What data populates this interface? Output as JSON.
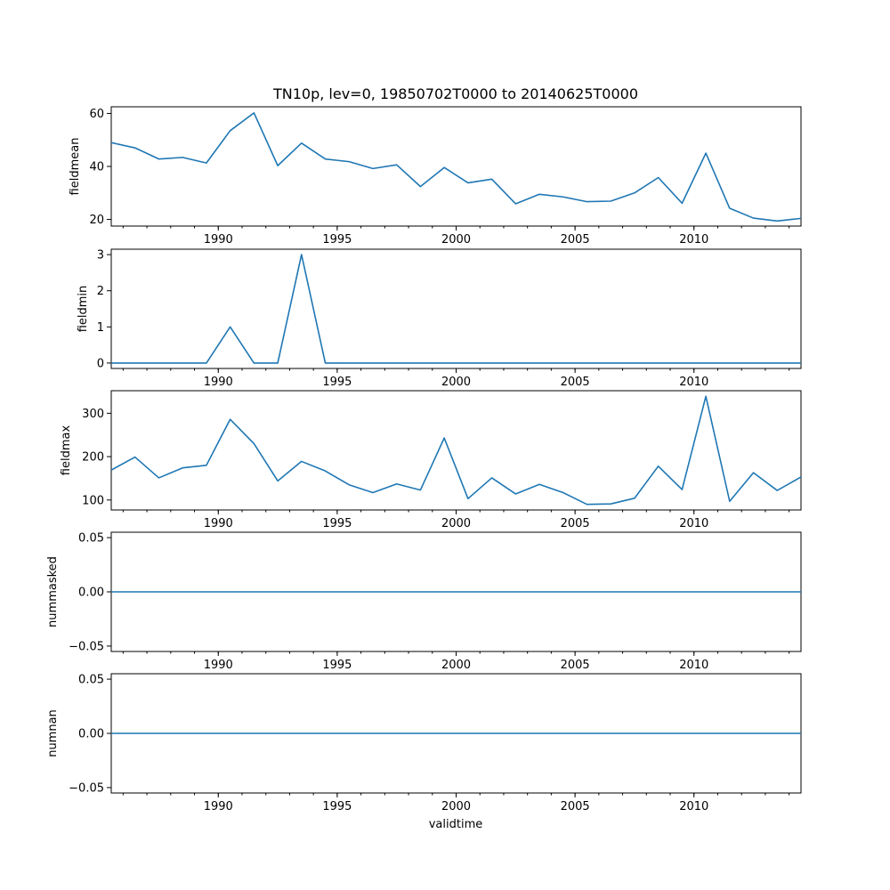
{
  "title": "TN10p, lev=0, 19850702T0000 to 20140625T0000",
  "xlabel": "validtime",
  "colors": {
    "series": "#1f77b4"
  },
  "chart_data": {
    "type": "line",
    "title": "TN10p, lev=0, 19850702T0000 to 20140625T0000",
    "xlabel": "validtime",
    "xlim": [
      1985.5,
      2014.5
    ],
    "x_ticks": [
      1990,
      1995,
      2000,
      2005,
      2010
    ],
    "x_tick_labels": [
      "1990",
      "1995",
      "2000",
      "2005",
      "2010"
    ],
    "x": [
      1985.5,
      1986.5,
      1987.5,
      1988.5,
      1989.5,
      1990.5,
      1991.5,
      1992.5,
      1993.5,
      1994.5,
      1995.5,
      1996.5,
      1997.5,
      1998.5,
      1999.5,
      2000.5,
      2001.5,
      2002.5,
      2003.5,
      2004.5,
      2005.5,
      2006.5,
      2007.5,
      2008.5,
      2009.5,
      2010.5,
      2011.5,
      2012.5,
      2013.5,
      2014.5
    ],
    "panels": [
      {
        "ylabel": "fieldmean",
        "ylim": [
          17.5,
          62.5
        ],
        "y_ticks": [
          20,
          40,
          60
        ],
        "y_tick_labels": [
          "20",
          "40",
          "60"
        ],
        "values": [
          49,
          47,
          42.8,
          43.4,
          41.3,
          53.5,
          60.2,
          40.3,
          48.8,
          42.8,
          41.8,
          39.2,
          40.6,
          32.4,
          39.6,
          33.8,
          35.2,
          25.9,
          29.5,
          28.5,
          26.7,
          26.9,
          30,
          35.8,
          26.1,
          45,
          24.2,
          20.5,
          19.4,
          20.4
        ]
      },
      {
        "ylabel": "fieldmin",
        "ylim": [
          -0.15,
          3.15
        ],
        "y_ticks": [
          0,
          1,
          2,
          3
        ],
        "y_tick_labels": [
          "0",
          "1",
          "2",
          "3"
        ],
        "values": [
          0,
          0,
          0,
          0,
          0,
          1,
          0,
          0,
          3,
          0,
          0,
          0,
          0,
          0,
          0,
          0,
          0,
          0,
          0,
          0,
          0,
          0,
          0,
          0,
          0,
          0,
          0,
          0,
          0,
          0
        ]
      },
      {
        "ylabel": "fieldmax",
        "ylim": [
          77,
          352
        ],
        "y_ticks": [
          100,
          200,
          300
        ],
        "y_tick_labels": [
          "100",
          "200",
          "300"
        ],
        "values": [
          169,
          199,
          151,
          174,
          180,
          286,
          230,
          144,
          189,
          167,
          135,
          117,
          137,
          123,
          243,
          103,
          151,
          114,
          136,
          117,
          90,
          91,
          104,
          178,
          124,
          339,
          97,
          163,
          122,
          153
        ]
      },
      {
        "ylabel": "nummasked",
        "ylim": [
          -0.055,
          0.055
        ],
        "y_ticks": [
          -0.05,
          0,
          0.05
        ],
        "y_tick_labels": [
          "−0.05",
          "0.00",
          "0.05"
        ],
        "values": [
          0,
          0,
          0,
          0,
          0,
          0,
          0,
          0,
          0,
          0,
          0,
          0,
          0,
          0,
          0,
          0,
          0,
          0,
          0,
          0,
          0,
          0,
          0,
          0,
          0,
          0,
          0,
          0,
          0,
          0
        ]
      },
      {
        "ylabel": "numnan",
        "ylim": [
          -0.055,
          0.055
        ],
        "y_ticks": [
          -0.05,
          0,
          0.05
        ],
        "y_tick_labels": [
          "−0.05",
          "0.00",
          "0.05"
        ],
        "values": [
          0,
          0,
          0,
          0,
          0,
          0,
          0,
          0,
          0,
          0,
          0,
          0,
          0,
          0,
          0,
          0,
          0,
          0,
          0,
          0,
          0,
          0,
          0,
          0,
          0,
          0,
          0,
          0,
          0,
          0
        ]
      }
    ]
  }
}
